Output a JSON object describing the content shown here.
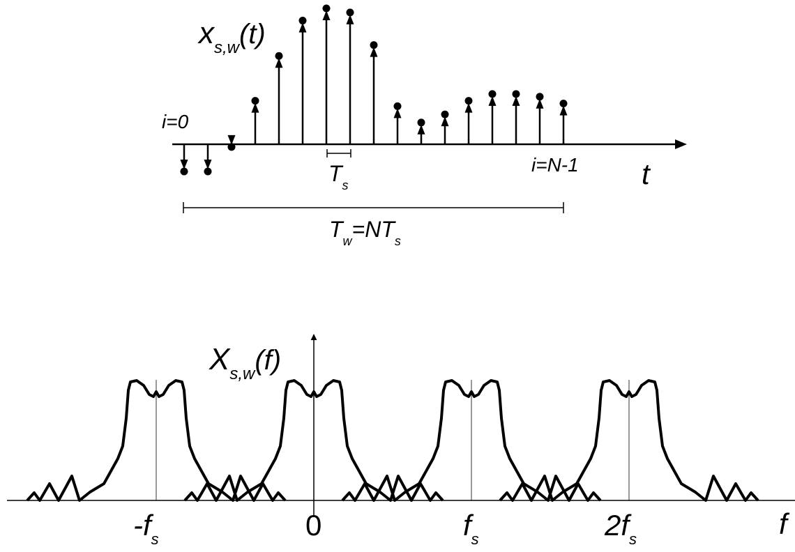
{
  "colors": {
    "ink": "#000000",
    "background": "#ffffff"
  },
  "time_plot": {
    "signal_label": {
      "main": "x",
      "sub": "s,w",
      "arg": "(t)"
    },
    "axis_label": "t",
    "first_index_label": "i=0",
    "last_index_label": "i=N-1",
    "sample_period_label": {
      "main": "T",
      "sub": "s"
    },
    "window_label": {
      "main": "T",
      "sub": "w",
      "eq": "=NT",
      "sub2": "s"
    },
    "samples": [
      -0.2,
      -0.2,
      -0.02,
      0.32,
      0.65,
      0.91,
      1.0,
      0.97,
      0.73,
      0.28,
      0.16,
      0.22,
      0.32,
      0.37,
      0.37,
      0.35,
      0.3
    ]
  },
  "freq_plot": {
    "spectrum_label": {
      "main": "X",
      "sub": "s,w",
      "arg": "(f)"
    },
    "axis_label": "f",
    "ticks": [
      {
        "pre": "-f",
        "sub": "s"
      },
      {
        "pre": "0",
        "sub": ""
      },
      {
        "pre": "f",
        "sub": "s"
      },
      {
        "pre": "2f",
        "sub": "s"
      }
    ]
  }
}
